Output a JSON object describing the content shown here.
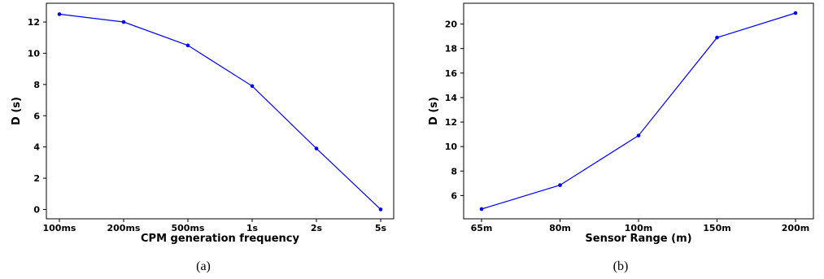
{
  "chart_data": [
    {
      "type": "line",
      "caption": "(a)",
      "xlabel": "CPM generation frequency",
      "ylabel": "D (s)",
      "categories": [
        "100ms",
        "200ms",
        "500ms",
        "1s",
        "2s",
        "5s"
      ],
      "series": [
        {
          "values": [
            12.5,
            12.0,
            10.5,
            7.9,
            3.9,
            0.0
          ],
          "color": "#0000ff"
        }
      ],
      "ylim": [
        -0.6,
        13.2
      ],
      "yticks": [
        0,
        2,
        4,
        6,
        8,
        10,
        12
      ],
      "grid": false
    },
    {
      "type": "line",
      "caption": "(b)",
      "xlabel": "Sensor Range (m)",
      "ylabel": "D (s)",
      "categories": [
        "65m",
        "80m",
        "100m",
        "150m",
        "200m"
      ],
      "series": [
        {
          "values": [
            4.9,
            6.85,
            10.9,
            18.9,
            20.9
          ],
          "color": "#0000ff"
        }
      ],
      "ylim": [
        4.1,
        21.7
      ],
      "yticks": [
        6,
        8,
        10,
        12,
        14,
        16,
        18,
        20
      ],
      "grid": false
    }
  ]
}
